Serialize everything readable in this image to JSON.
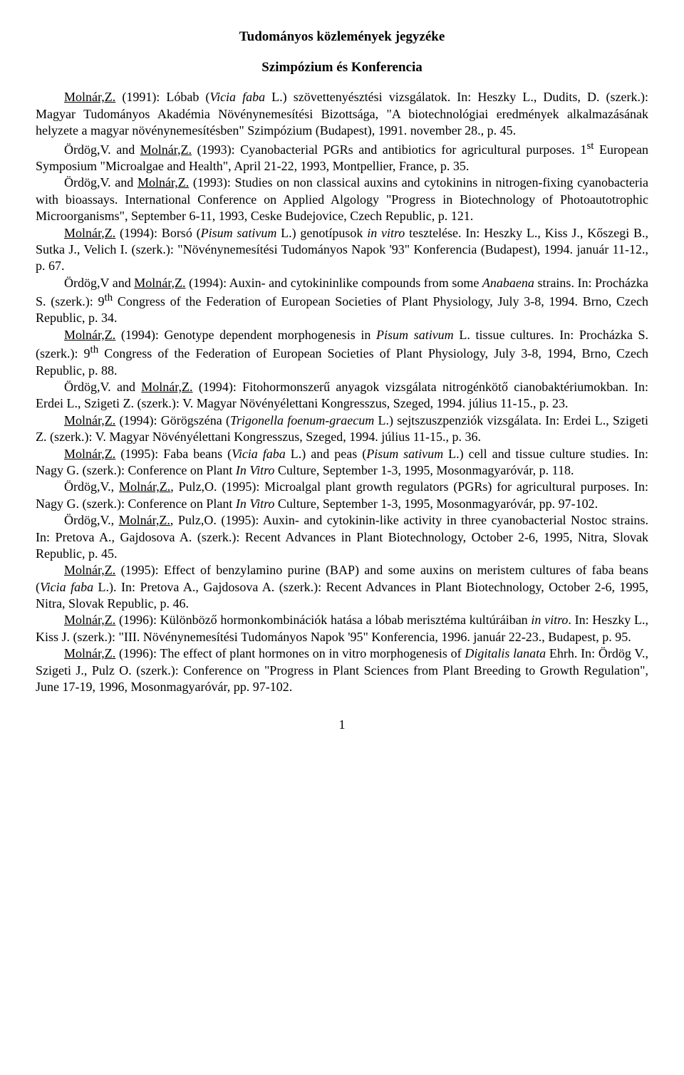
{
  "title": "Tudományos közlemények jegyzéke",
  "subtitle": "Szimpózium és Konferencia",
  "page_number": "1",
  "entries": [
    {
      "html": "<span class='author'>Molnár,Z.</span> (1991): Lóbab (<span class='italic'>Vicia faba</span> L.) szövettenyésztési vizsgálatok. In: Heszky L., Dudits, D. (szerk.): Magyar Tudományos Akadémia Növénynemesítési Bizottsága, \"A biotechnológiai eredmények alkalmazásának helyzete a magyar növénynemesítésben\" Szimpózium (Budapest), 1991. november 28., p. 45."
    },
    {
      "html": "Ördög,V. and <span class='author'>Molnár,Z.</span> (1993): Cyanobacterial PGRs and antibiotics for agricultural purposes. 1<sup>st</sup> European Symposium \"Microalgae and Health\", April 21-22, 1993, Montpellier, France, p. 35."
    },
    {
      "html": "Ördög,V. and <span class='author'>Molnár,Z.</span> (1993): Studies on non classical auxins and cytokinins in nitrogen-fixing cyanobacteria with bioassays. International Conference on Applied Algology \"Progress in Biotechnology of Photoautotrophic Microorganisms\", September 6-11, 1993, Ceske Budejovice, Czech Republic, p. 121."
    },
    {
      "html": "<span class='author'>Molnár,Z.</span> (1994): Borsó (<span class='italic'>Pisum sativum</span> L.) genotípusok <span class='italic'>in vitro</span> tesztelése. In: Heszky L., Kiss J., Kőszegi B., Sutka J., Velich I. (szerk.): \"Növénynemesítési Tudományos Napok '93\" Konferencia (Budapest), 1994. január 11-12., p. 67."
    },
    {
      "html": "Ördög,V and <span class='author'>Molnár,Z.</span> (1994): Auxin- and cytokininlike compounds from some <span class='italic'>Anabaena</span> strains. In: Procházka S. (szerk.): 9<sup>th</sup> Congress of the Federation of European Societies of Plant Physiology, July 3-8, 1994. Brno, Czech Republic, p. 34."
    },
    {
      "html": "<span class='author'>Molnár,Z.</span> (1994): Genotype dependent morphogenesis in <span class='italic'>Pisum sativum</span> L. tissue cultures. In: Procházka S. (szerk.): 9<sup>th</sup> Congress of the Federation of European Societies of Plant Physiology, July 3-8, 1994, Brno, Czech Republic, p. 88."
    },
    {
      "html": "Ördög,V. and <span class='author'>Molnár,Z.</span> (1994): Fitohormonszerű anyagok vizsgálata nitrogénkötő cianobaktériumokban. In: Erdei L., Szigeti Z. (szerk.): V. Magyar Növényélettani Kongresszus, Szeged, 1994. július 11-15., p. 23."
    },
    {
      "html": "<span class='author'>Molnár,Z.</span> (1994): Görögszéna (<span class='italic'>Trigonella foenum-graecum</span> L.) sejtszuszpenziók vizsgálata. In: Erdei L., Szigeti Z. (szerk.): V. Magyar Növényélettani Kongresszus, Szeged, 1994. július 11-15., p. 36."
    },
    {
      "html": "<span class='author'>Molnár,Z.</span> (1995): Faba beans (<span class='italic'>Vicia faba</span> L.) and peas (<span class='italic'>Pisum sativum</span> L.) cell and tissue culture studies. In: Nagy G. (szerk.): Conference on Plant <span class='italic'>In Vitro</span> Culture, September 1-3, 1995, Mosonmagyaróvár, p. 118."
    },
    {
      "html": "Ördög,V., <span class='author'>Molnár,Z.</span>, Pulz,O. (1995): Microalgal plant growth regulators (PGRs) for agricultural purposes. In: Nagy G. (szerk.): Conference on Plant <span class='italic'>In Vitro</span> Culture, September 1-3, 1995, Mosonmagyaróvár, pp. 97-102."
    },
    {
      "html": "Ördög,V., <span class='author'>Molnár,Z.</span>, Pulz,O. (1995): Auxin- and cytokinin-like activity in three cyanobacterial Nostoc strains. In: Pretova A., Gajdosova A. (szerk.): Recent Advances in Plant Biotechnology, October 2-6, 1995, Nitra, Slovak Republic, p. 45."
    },
    {
      "html": "<span class='author'>Molnár,Z.</span> (1995): Effect of benzylamino purine (BAP) and some auxins on meristem cultures of faba beans (<span class='italic'>Vicia faba</span> L.). In: Pretova A., Gajdosova A. (szerk.): Recent Advances in Plant Biotechnology, October 2-6, 1995, Nitra, Slovak Republic, p. 46."
    },
    {
      "html": "<span class='author'>Molnár,Z.</span> (1996): Különböző hormonkombinációk hatása a lóbab merisztéma kultúráiban <span class='italic'>in vitro</span>. In: Heszky L., Kiss J. (szerk.): \"III. Növénynemesítési Tudományos Napok '95\" Konferencia, 1996. január 22-23., Budapest, p. 95."
    },
    {
      "html": "<span class='author'>Molnár,Z.</span> (1996): The effect of plant hormones on in vitro morphogenesis of <span class='italic'>Digitalis lanata</span> Ehrh. In: Ördög V., Szigeti J., Pulz O. (szerk.): Conference on \"Progress in Plant Sciences from Plant Breeding to Growth Regulation\", June 17-19, 1996, Mosonmagyaróvár, pp. 97-102."
    }
  ]
}
